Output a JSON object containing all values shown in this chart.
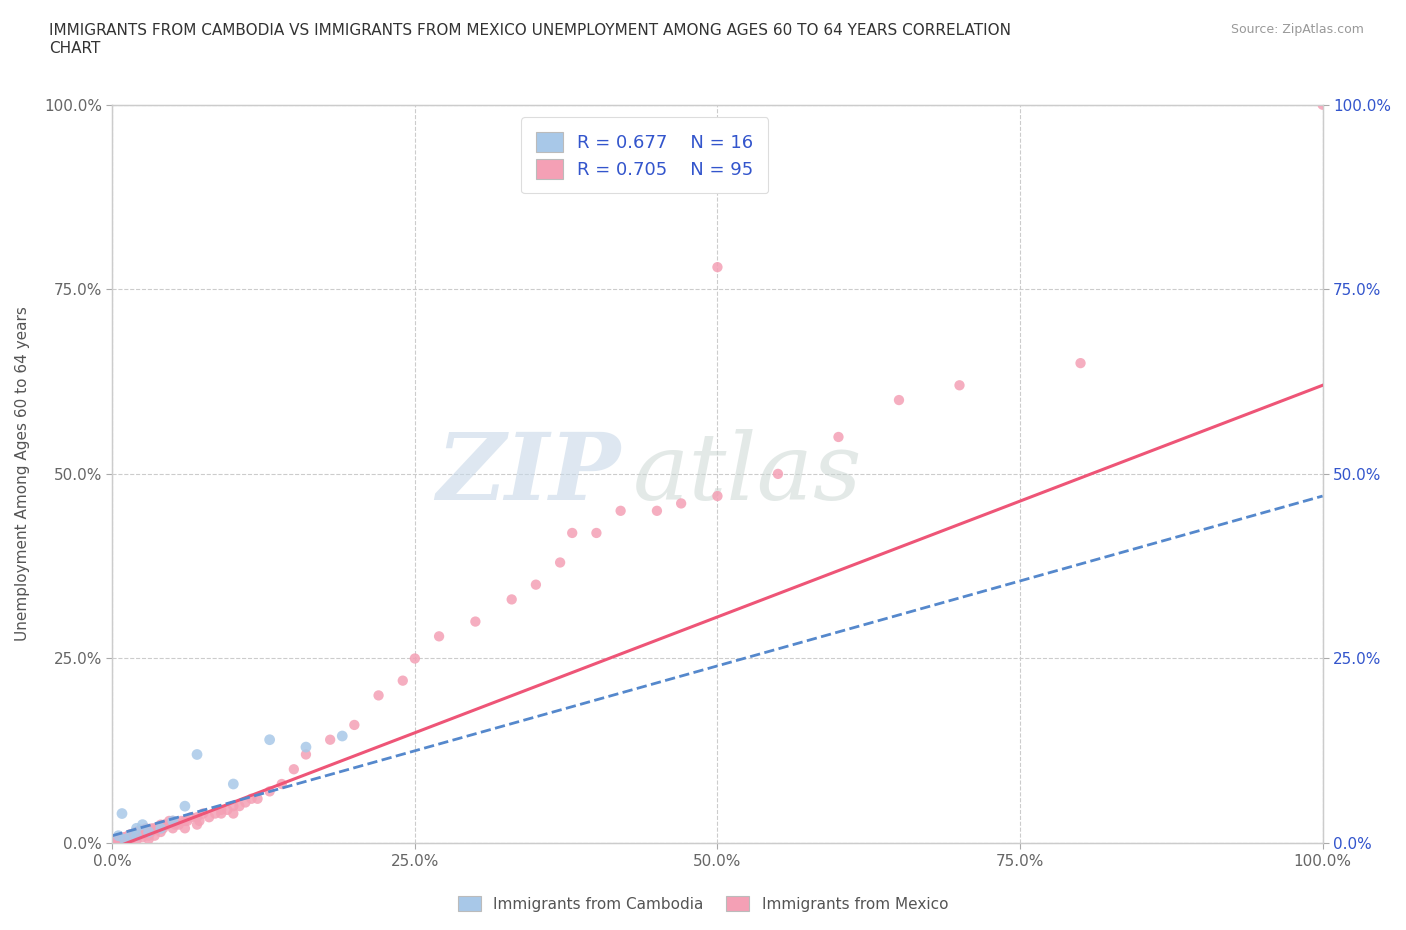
{
  "title": "IMMIGRANTS FROM CAMBODIA VS IMMIGRANTS FROM MEXICO UNEMPLOYMENT AMONG AGES 60 TO 64 YEARS CORRELATION\nCHART",
  "source_text": "Source: ZipAtlas.com",
  "ylabel": "Unemployment Among Ages 60 to 64 years",
  "xlim": [
    0.0,
    1.0
  ],
  "ylim": [
    0.0,
    1.0
  ],
  "x_tick_labels": [
    "0.0%",
    "25.0%",
    "50.0%",
    "75.0%",
    "100.0%"
  ],
  "x_tick_positions": [
    0.0,
    0.25,
    0.5,
    0.75,
    1.0
  ],
  "y_tick_labels": [
    "0.0%",
    "25.0%",
    "50.0%",
    "75.0%",
    "100.0%"
  ],
  "y_tick_positions": [
    0.0,
    0.25,
    0.5,
    0.75,
    1.0
  ],
  "cambodia_color": "#a8c8e8",
  "mexico_color": "#f4a0b5",
  "cambodia_line_color": "#5588cc",
  "mexico_line_color": "#ee5577",
  "legend_text_color": "#3355cc",
  "right_tick_color": "#3355cc",
  "watermark_zip": "ZIP",
  "watermark_atlas": "atlas",
  "watermark_color": "#d0dce8",
  "R_cambodia": 0.677,
  "N_cambodia": 16,
  "R_mexico": 0.705,
  "N_mexico": 95,
  "cam_x": [
    0.005,
    0.008,
    0.01,
    0.015,
    0.02,
    0.02,
    0.025,
    0.03,
    0.04,
    0.05,
    0.06,
    0.07,
    0.1,
    0.13,
    0.16,
    0.19
  ],
  "cam_y": [
    0.01,
    0.04,
    0.005,
    0.01,
    0.01,
    0.02,
    0.025,
    0.015,
    0.02,
    0.03,
    0.05,
    0.12,
    0.08,
    0.14,
    0.13,
    0.145
  ],
  "mex_x": [
    0.0,
    0.0,
    0.005,
    0.005,
    0.007,
    0.008,
    0.01,
    0.01,
    0.012,
    0.013,
    0.015,
    0.015,
    0.015,
    0.015,
    0.016,
    0.017,
    0.018,
    0.019,
    0.02,
    0.02,
    0.02,
    0.022,
    0.022,
    0.023,
    0.025,
    0.025,
    0.025,
    0.027,
    0.028,
    0.03,
    0.03,
    0.03,
    0.032,
    0.033,
    0.035,
    0.035,
    0.037,
    0.038,
    0.04,
    0.04,
    0.042,
    0.043,
    0.045,
    0.047,
    0.05,
    0.05,
    0.052,
    0.055,
    0.057,
    0.06,
    0.06,
    0.062,
    0.065,
    0.07,
    0.07,
    0.072,
    0.075,
    0.08,
    0.085,
    0.09,
    0.09,
    0.095,
    0.1,
    0.1,
    0.105,
    0.11,
    0.115,
    0.12,
    0.13,
    0.14,
    0.15,
    0.16,
    0.18,
    0.2,
    0.22,
    0.24,
    0.25,
    0.27,
    0.3,
    0.33,
    0.35,
    0.37,
    0.38,
    0.4,
    0.42,
    0.45,
    0.47,
    0.5,
    0.5,
    0.55,
    0.6,
    0.65,
    0.7,
    0.8,
    1.0
  ],
  "mex_y": [
    0.002,
    0.005,
    0.0,
    0.003,
    0.005,
    0.008,
    0.002,
    0.008,
    0.005,
    0.01,
    0.005,
    0.008,
    0.01,
    0.012,
    0.007,
    0.01,
    0.012,
    0.015,
    0.003,
    0.01,
    0.015,
    0.01,
    0.015,
    0.018,
    0.008,
    0.012,
    0.018,
    0.015,
    0.02,
    0.005,
    0.01,
    0.018,
    0.015,
    0.02,
    0.01,
    0.02,
    0.018,
    0.022,
    0.015,
    0.025,
    0.02,
    0.025,
    0.025,
    0.03,
    0.02,
    0.03,
    0.025,
    0.025,
    0.03,
    0.02,
    0.03,
    0.03,
    0.035,
    0.025,
    0.035,
    0.03,
    0.04,
    0.035,
    0.04,
    0.04,
    0.045,
    0.045,
    0.04,
    0.05,
    0.05,
    0.055,
    0.06,
    0.06,
    0.07,
    0.08,
    0.1,
    0.12,
    0.14,
    0.16,
    0.2,
    0.22,
    0.25,
    0.28,
    0.3,
    0.33,
    0.35,
    0.38,
    0.42,
    0.42,
    0.45,
    0.45,
    0.46,
    0.47,
    0.78,
    0.5,
    0.55,
    0.6,
    0.62,
    0.65,
    1.0
  ],
  "cam_line_x": [
    0.0,
    1.0
  ],
  "cam_line_y": [
    0.01,
    0.47
  ],
  "mex_line_x": [
    -0.02,
    1.0
  ],
  "mex_line_y": [
    -0.02,
    0.62
  ],
  "background_color": "#ffffff",
  "grid_color": "#cccccc"
}
